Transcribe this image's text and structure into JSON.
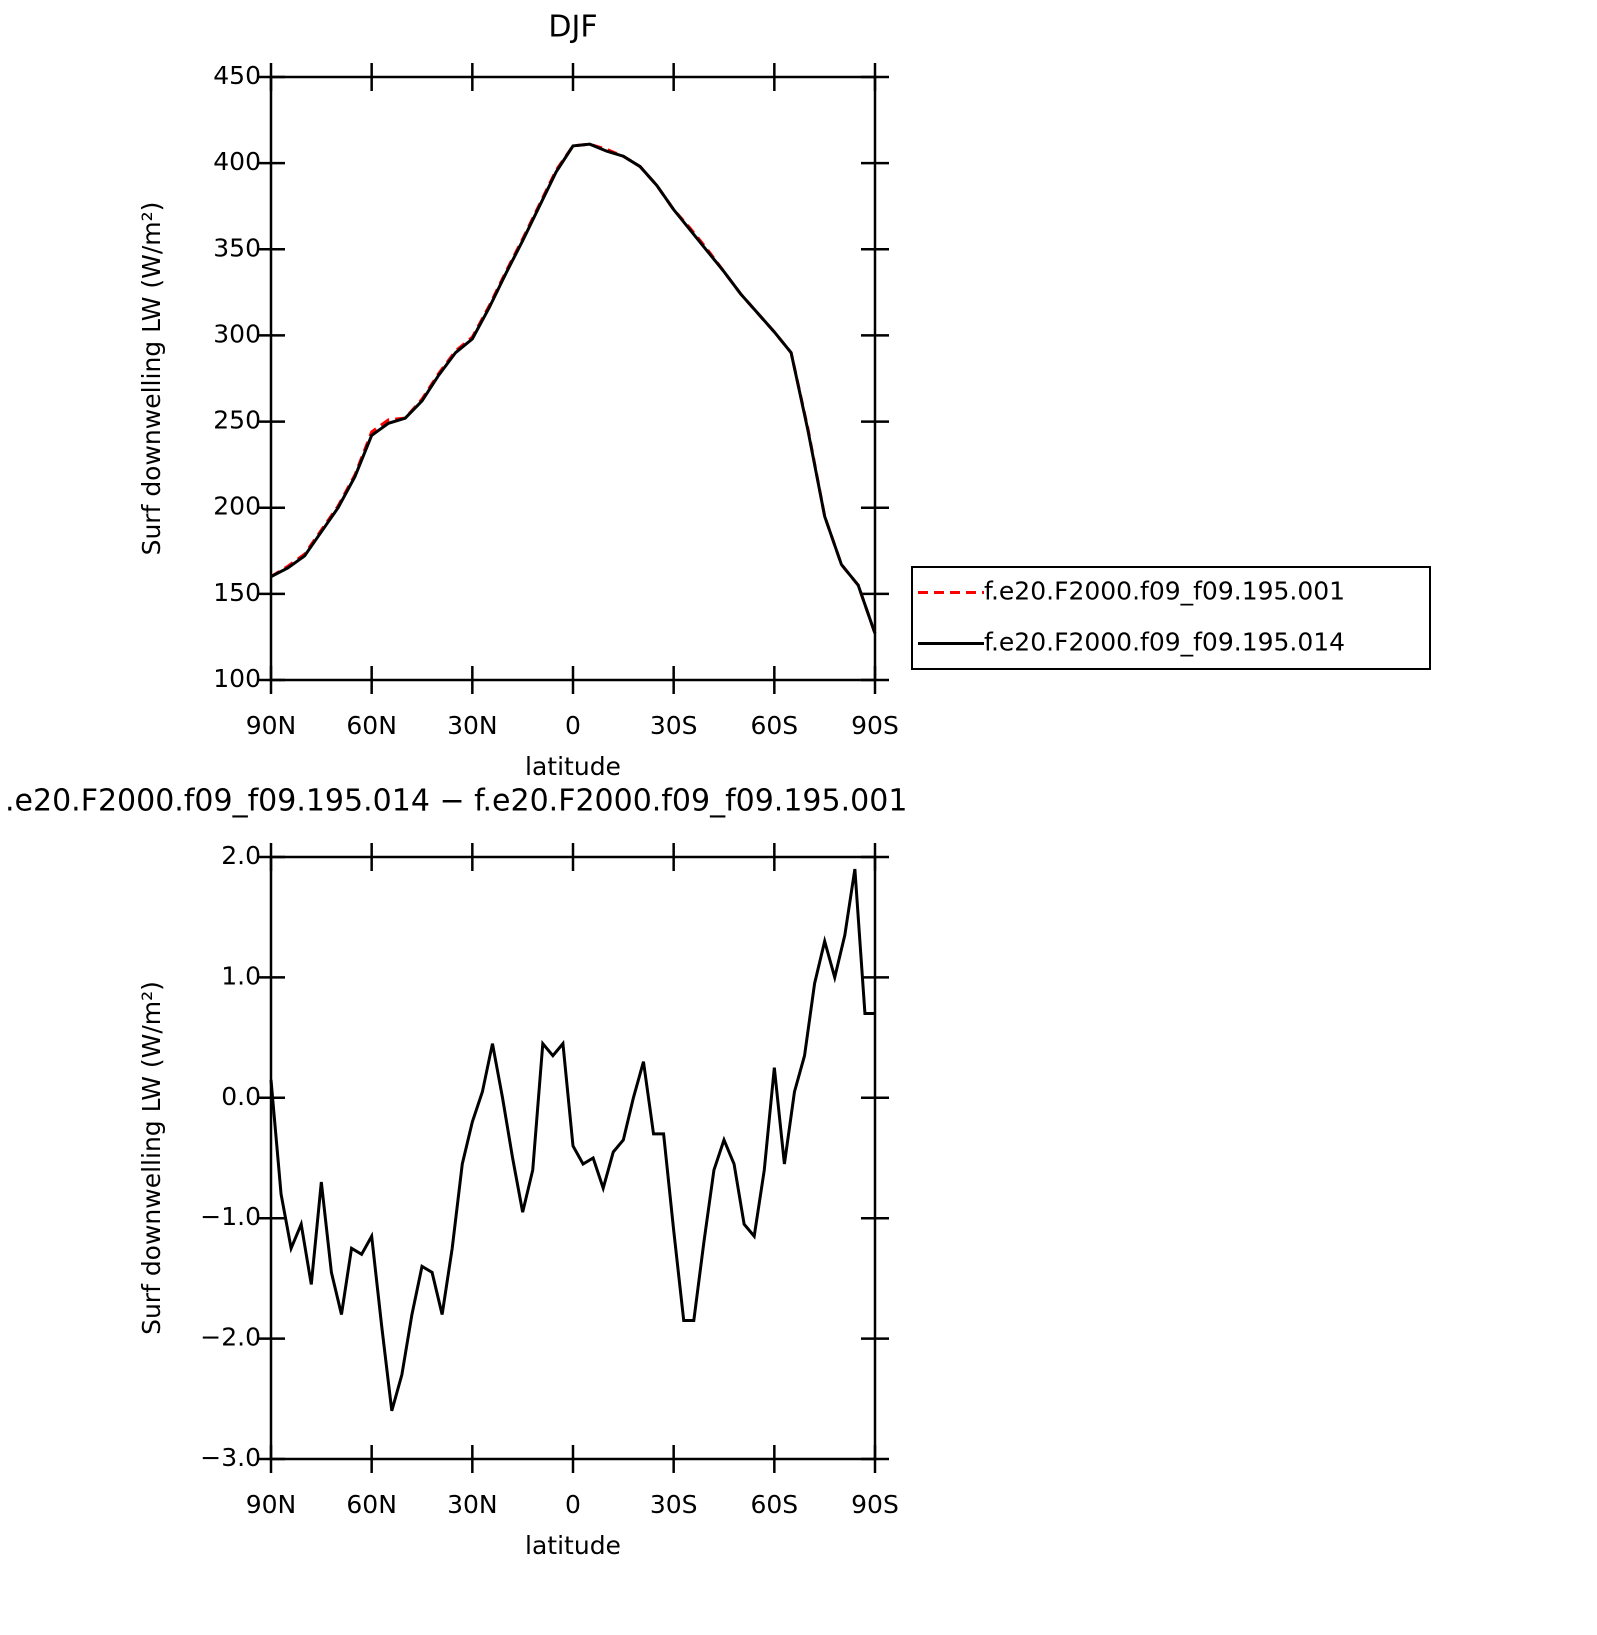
{
  "chart_data": [
    {
      "type": "line",
      "title": "DJF",
      "xlabel": "latitude",
      "ylabel": "Surf downwelling LW (W/m²)",
      "x": [
        90,
        85,
        80,
        75,
        70,
        65,
        60,
        55,
        50,
        45,
        40,
        35,
        30,
        25,
        20,
        15,
        10,
        5,
        0,
        -5,
        -10,
        -15,
        -20,
        -25,
        -30,
        -35,
        -40,
        -45,
        -50,
        -55,
        -60,
        -65,
        -70,
        -75,
        -80,
        -85,
        -90
      ],
      "series": [
        {
          "name": "f.e20.F2000.f09_f09.195.001",
          "color": "#ff0000",
          "style": "dashed",
          "values": [
            160,
            166,
            173,
            187,
            201,
            219,
            244,
            251,
            252,
            263,
            278,
            291,
            299,
            317,
            337,
            356,
            376,
            396,
            410,
            411,
            408,
            404,
            398,
            387,
            373,
            362,
            350,
            337,
            324,
            313,
            302,
            290,
            246,
            195,
            167,
            155,
            127
          ]
        },
        {
          "name": "f.e20.F2000.f09_f09.195.014",
          "color": "#000000",
          "style": "solid",
          "values": [
            160,
            165,
            172,
            186,
            200,
            218,
            242,
            249,
            252,
            262,
            277,
            290,
            298,
            316,
            336,
            355,
            375,
            395,
            410,
            411,
            407,
            404,
            398,
            387,
            373,
            361,
            349,
            337,
            324,
            313,
            302,
            290,
            245,
            195,
            167,
            155,
            127
          ]
        }
      ],
      "xlim": [
        90,
        -90
      ],
      "xticks": [
        {
          "value": 90,
          "label": "90N"
        },
        {
          "value": 60,
          "label": "60N"
        },
        {
          "value": 30,
          "label": "30N"
        },
        0,
        {
          "value": -30,
          "label": "30S"
        },
        {
          "value": -60,
          "label": "60S"
        },
        {
          "value": -90,
          "label": "90S"
        }
      ],
      "ylim": [
        100,
        450
      ],
      "yticks": [
        100,
        150,
        200,
        250,
        300,
        350,
        400,
        450
      ],
      "legend": "right"
    },
    {
      "type": "line",
      "title": ".e20.F2000.f09_f09.195.014 − f.e20.F2000.f09_f09.195.001",
      "xlabel": "latitude",
      "ylabel": "Surf downwelling LW (W/m²)",
      "x": [
        90,
        87,
        84,
        81,
        78,
        75,
        72,
        69,
        66,
        63,
        60,
        57,
        54,
        51,
        48,
        45,
        42,
        39,
        36,
        33,
        30,
        27,
        24,
        21,
        18,
        15,
        12,
        9,
        6,
        3,
        0,
        -3,
        -6,
        -9,
        -12,
        -15,
        -18,
        -21,
        -24,
        -27,
        -30,
        -33,
        -36,
        -39,
        -42,
        -45,
        -48,
        -51,
        -54,
        -57,
        -60,
        -63,
        -66,
        -69,
        -72,
        -75,
        -78,
        -81,
        -84,
        -87,
        -90
      ],
      "series": [
        {
          "name": "f.e20.F2000.f09_f09.195.014 − f.e20.F2000.f09_f09.195.001",
          "color": "#000000",
          "style": "solid",
          "values": [
            0.15,
            -0.8,
            -1.25,
            -1.05,
            -1.55,
            -0.7,
            -1.45,
            -1.8,
            -1.25,
            -1.3,
            -1.15,
            -1.9,
            -2.6,
            -2.3,
            -1.8,
            -1.4,
            -1.45,
            -1.8,
            -1.25,
            -0.55,
            -0.2,
            0.05,
            0.45,
            0.0,
            -0.5,
            -0.95,
            -0.6,
            0.45,
            0.35,
            0.45,
            -0.4,
            -0.55,
            -0.5,
            -0.75,
            -0.45,
            -0.35,
            0.0,
            0.3,
            -0.3,
            -0.3,
            -1.1,
            -1.85,
            -1.85,
            -1.2,
            -0.6,
            -0.35,
            -0.55,
            -1.05,
            -1.15,
            -0.6,
            0.25,
            -0.55,
            0.05,
            0.35,
            0.95,
            1.3,
            1.0,
            1.35,
            1.9,
            0.7,
            0.7
          ]
        }
      ],
      "xlim": [
        90,
        -90
      ],
      "xticks": [
        {
          "value": 90,
          "label": "90N"
        },
        {
          "value": 60,
          "label": "60N"
        },
        {
          "value": 30,
          "label": "30N"
        },
        0,
        {
          "value": -30,
          "label": "30S"
        },
        {
          "value": -60,
          "label": "60S"
        },
        {
          "value": -90,
          "label": "90S"
        }
      ],
      "ylim": [
        -3,
        2
      ],
      "yticks": [
        {
          "value": -3,
          "label": "−3.0"
        },
        {
          "value": -2,
          "label": "−2.0"
        },
        {
          "value": -1,
          "label": "−1.0"
        },
        {
          "value": 0,
          "label": "0.0"
        },
        {
          "value": 1,
          "label": "1.0"
        },
        {
          "value": 2,
          "label": "2.0"
        }
      ]
    }
  ]
}
